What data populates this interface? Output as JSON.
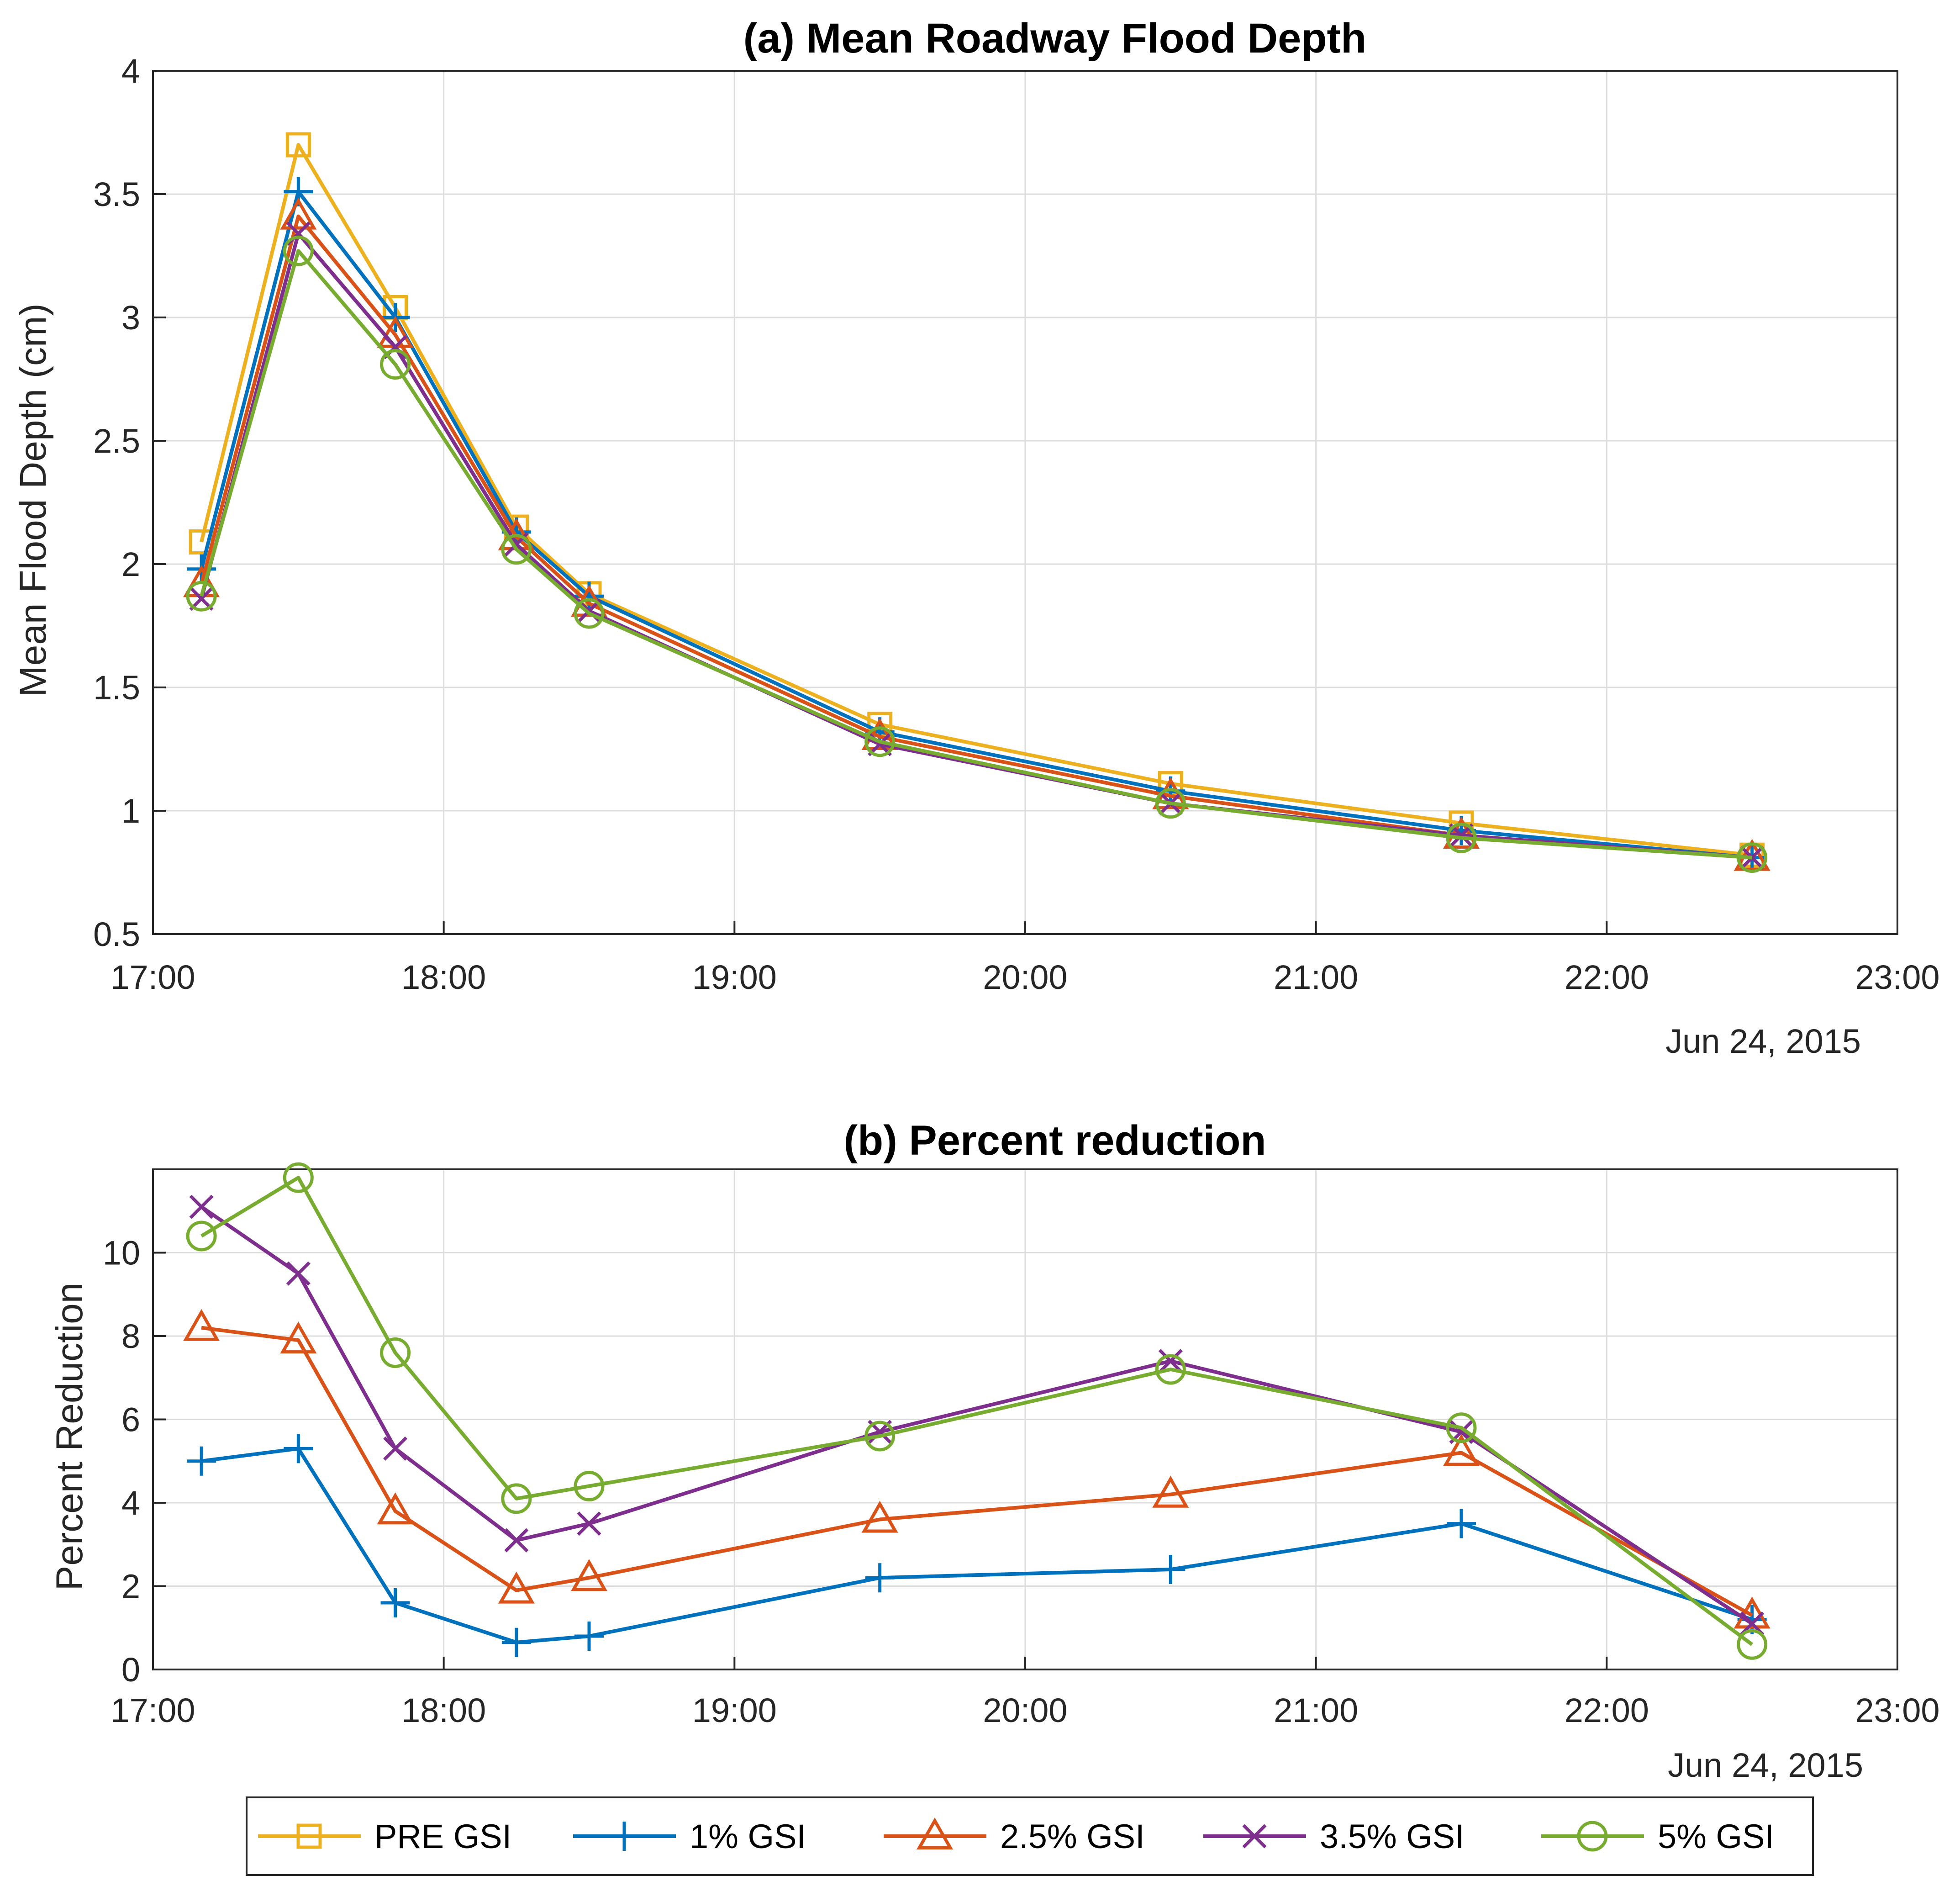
{
  "chart_data": [
    {
      "type": "line",
      "title": "(a) Mean Roadway Flood Depth",
      "xlabel": "",
      "ylabel": "Mean Flood Depth (cm)",
      "date_label": "Jun 24, 2015",
      "x": [
        "17:10",
        "17:30",
        "17:50",
        "18:15",
        "18:30",
        "19:30",
        "20:30",
        "21:30",
        "22:30"
      ],
      "xlim": [
        "17:00",
        "23:00"
      ],
      "xticks": [
        "17:00",
        "18:00",
        "19:00",
        "20:00",
        "21:00",
        "22:00",
        "23:00"
      ],
      "ylim": [
        0.5,
        4
      ],
      "yticks": [
        "0.5",
        "1",
        "1.5",
        "2",
        "2.5",
        "3",
        "3.5",
        "4"
      ],
      "grid": true,
      "series": [
        {
          "name": "PRE GSI",
          "color": "#EDB120",
          "marker": "square",
          "values": [
            2.09,
            3.7,
            3.04,
            2.15,
            1.88,
            1.35,
            1.11,
            0.95,
            0.82
          ]
        },
        {
          "name": "1% GSI",
          "color": "#0072BD",
          "marker": "plus",
          "values": [
            1.98,
            3.51,
            3.0,
            2.13,
            1.87,
            1.32,
            1.08,
            0.92,
            0.81
          ]
        },
        {
          "name": "2.5% GSI",
          "color": "#D95319",
          "marker": "triangle",
          "values": [
            1.92,
            3.41,
            2.93,
            2.11,
            1.84,
            1.3,
            1.06,
            0.9,
            0.81
          ]
        },
        {
          "name": "3.5% GSI",
          "color": "#7E2F8E",
          "marker": "x",
          "values": [
            1.86,
            3.34,
            2.88,
            2.08,
            1.81,
            1.27,
            1.03,
            0.9,
            0.81
          ]
        },
        {
          "name": "5% GSI",
          "color": "#77AC30",
          "marker": "circle",
          "values": [
            1.87,
            3.27,
            2.81,
            2.06,
            1.8,
            1.28,
            1.03,
            0.89,
            0.81
          ]
        }
      ]
    },
    {
      "type": "line",
      "title": "(b) Percent reduction",
      "xlabel": "",
      "ylabel": "Percent Reduction",
      "date_label": "Jun 24, 2015",
      "x": [
        "17:10",
        "17:30",
        "17:50",
        "18:15",
        "18:30",
        "19:30",
        "20:30",
        "21:30",
        "22:30"
      ],
      "xlim": [
        "17:00",
        "23:00"
      ],
      "xticks": [
        "17:00",
        "18:00",
        "19:00",
        "20:00",
        "21:00",
        "22:00",
        "23:00"
      ],
      "ylim": [
        0,
        12
      ],
      "yticks": [
        "0",
        "2",
        "4",
        "6",
        "8",
        "10"
      ],
      "grid": true,
      "series": [
        {
          "name": "1% GSI",
          "color": "#0072BD",
          "marker": "plus",
          "values": [
            5.0,
            5.3,
            1.6,
            0.65,
            0.8,
            2.2,
            2.4,
            3.5,
            1.2
          ]
        },
        {
          "name": "2.5% GSI",
          "color": "#D95319",
          "marker": "triangle",
          "values": [
            8.2,
            7.9,
            3.8,
            1.9,
            2.2,
            3.6,
            4.2,
            5.2,
            1.3
          ]
        },
        {
          "name": "3.5% GSI",
          "color": "#7E2F8E",
          "marker": "x",
          "values": [
            11.1,
            9.5,
            5.3,
            3.1,
            3.5,
            5.7,
            7.4,
            5.7,
            1.1
          ]
        },
        {
          "name": "5% GSI",
          "color": "#77AC30",
          "marker": "circle",
          "values": [
            10.4,
            11.8,
            7.6,
            4.1,
            4.4,
            5.6,
            7.2,
            5.8,
            0.6
          ]
        }
      ]
    }
  ],
  "legend": {
    "placement": "bottom-center",
    "entries": [
      {
        "label": "PRE GSI",
        "color": "#EDB120",
        "marker": "square"
      },
      {
        "label": "1% GSI",
        "color": "#0072BD",
        "marker": "plus"
      },
      {
        "label": "2.5% GSI",
        "color": "#D95319",
        "marker": "triangle"
      },
      {
        "label": "3.5% GSI",
        "color": "#7E2F8E",
        "marker": "x"
      },
      {
        "label": "5% GSI",
        "color": "#77AC30",
        "marker": "circle"
      }
    ]
  }
}
